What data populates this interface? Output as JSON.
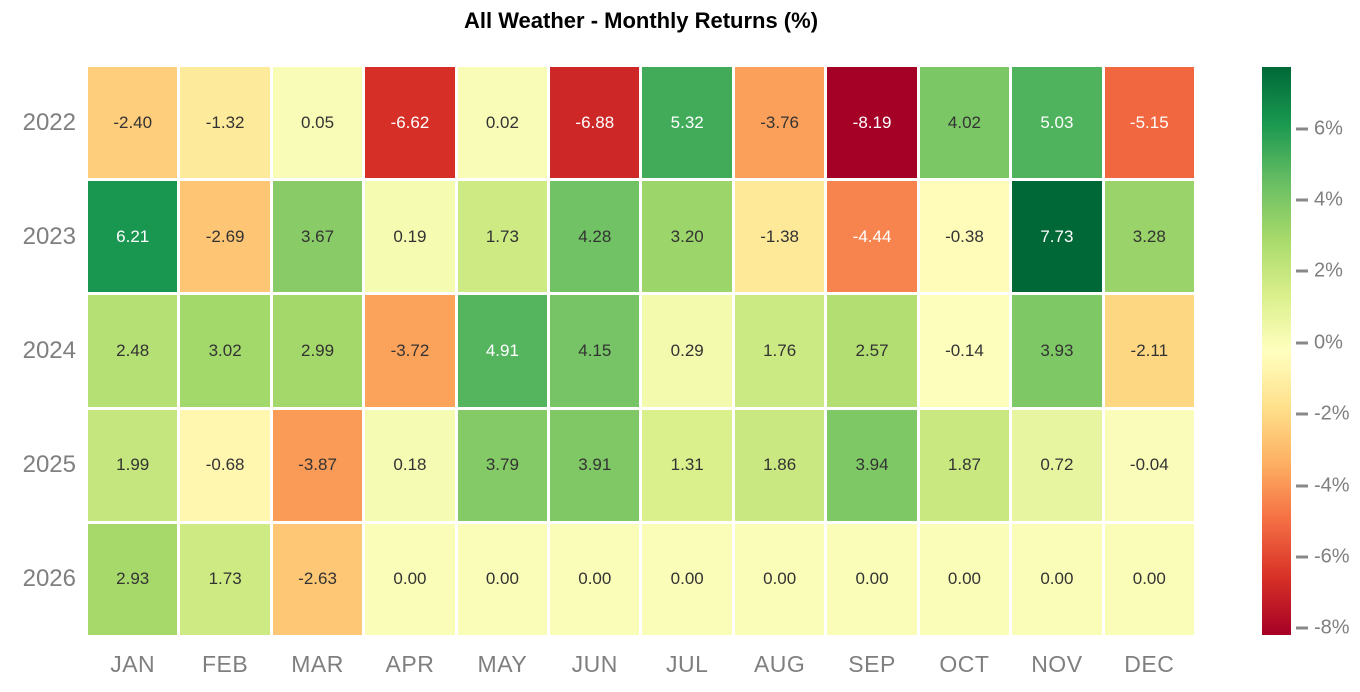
{
  "chart_data": {
    "type": "heatmap",
    "title": "All Weather - Monthly Returns (%)",
    "rows": [
      "2022",
      "2023",
      "2024",
      "2025",
      "2026"
    ],
    "columns": [
      "JAN",
      "FEB",
      "MAR",
      "APR",
      "MAY",
      "JUN",
      "JUL",
      "AUG",
      "SEP",
      "OCT",
      "NOV",
      "DEC"
    ],
    "values": [
      [
        -2.4,
        -1.32,
        0.05,
        -6.62,
        0.02,
        -6.88,
        5.32,
        -3.76,
        -8.19,
        4.02,
        5.03,
        -5.15
      ],
      [
        6.21,
        -2.69,
        3.67,
        0.19,
        1.73,
        4.28,
        3.2,
        -1.38,
        -4.44,
        -0.38,
        7.73,
        3.28
      ],
      [
        2.48,
        3.02,
        2.99,
        -3.72,
        4.91,
        4.15,
        0.29,
        1.76,
        2.57,
        -0.14,
        3.93,
        -2.11
      ],
      [
        1.99,
        -0.68,
        -3.87,
        0.18,
        3.79,
        3.91,
        1.31,
        1.86,
        3.94,
        1.87,
        0.72,
        -0.04
      ],
      [
        2.93,
        1.73,
        -2.63,
        0.0,
        0.0,
        0.0,
        0.0,
        0.0,
        0.0,
        0.0,
        0.0,
        0.0
      ]
    ],
    "value_decimals": 2,
    "vmin": -8.19,
    "vmax": 7.73,
    "colormap": {
      "name": "RdYlGn",
      "anchors": [
        "#a50026",
        "#d73027",
        "#f46d43",
        "#fdae61",
        "#fee08b",
        "#ffffbf",
        "#d9ef8b",
        "#a6d96a",
        "#66bd63",
        "#1a9850",
        "#006837"
      ]
    },
    "colorbar": {
      "position": "right",
      "ticks": [
        {
          "label": "6%",
          "value": 6
        },
        {
          "label": "4%",
          "value": 4
        },
        {
          "label": "2%",
          "value": 2
        },
        {
          "label": "0%",
          "value": 0
        },
        {
          "label": "-2%",
          "value": -2
        },
        {
          "label": "-4%",
          "value": -4
        },
        {
          "label": "-6%",
          "value": -6
        },
        {
          "label": "-8%",
          "value": -8
        }
      ]
    },
    "legend": "none",
    "grid_lines": "off"
  },
  "colors": {
    "background": "#ffffff",
    "title_text": "#000000",
    "axis_label": "#7f7f7f",
    "cell_text_dark": "#333333",
    "cell_text_light": "#ffffff",
    "tick_mark": "#888888",
    "cell_gap": "#ffffff"
  },
  "text_color_rule": {
    "light_text_below_norm": 0.25,
    "light_text_above_norm": 0.8
  }
}
